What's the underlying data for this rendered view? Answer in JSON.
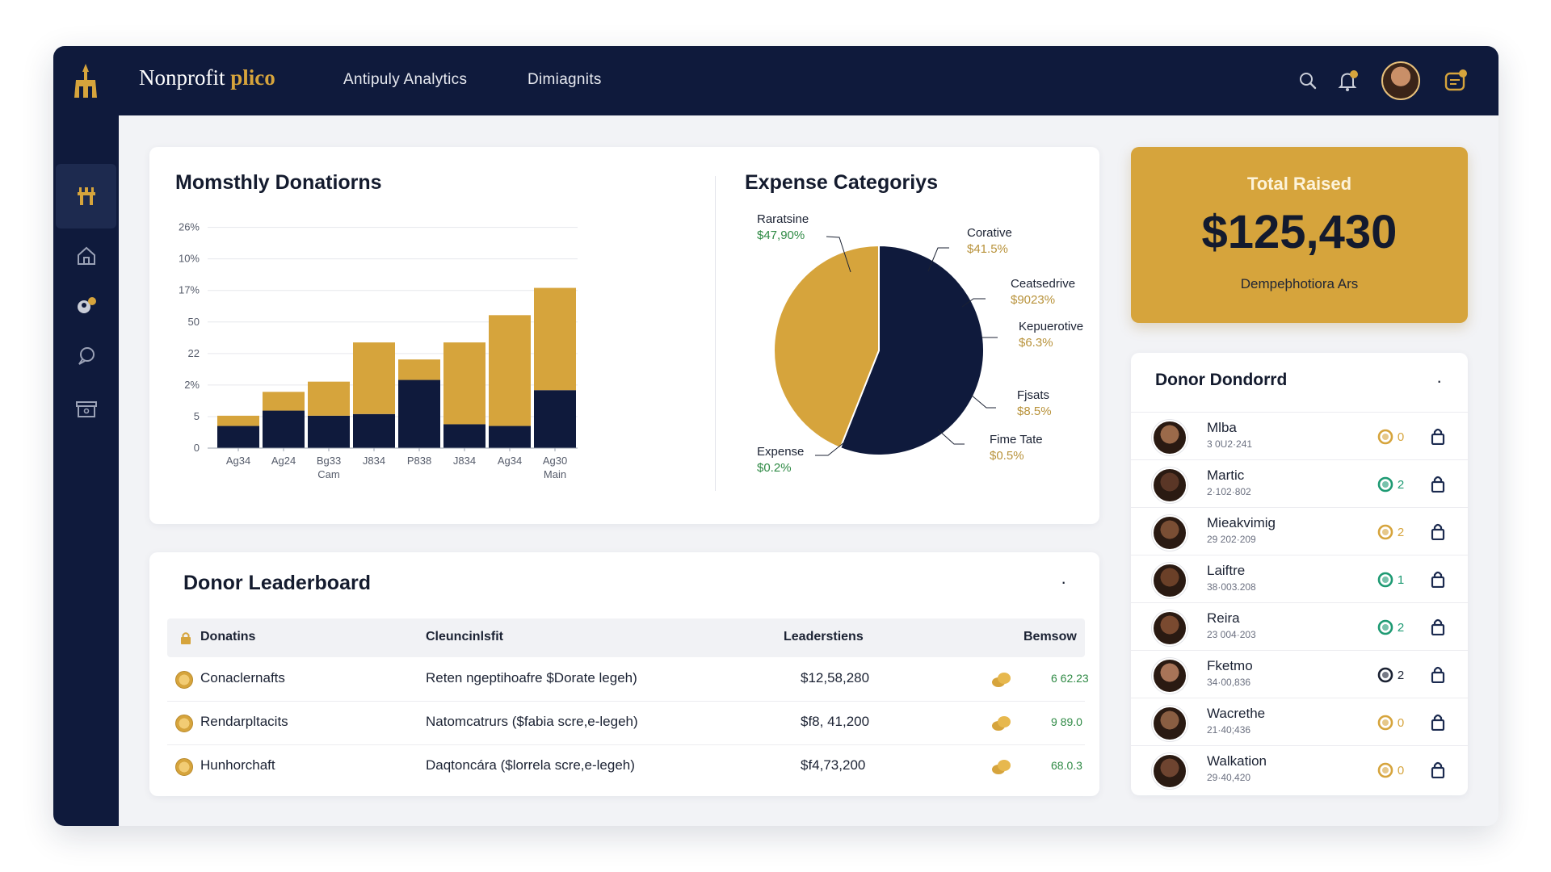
{
  "colors": {
    "navy": "#0f1a3c",
    "gold": "#d6a43c",
    "green": "#2f8a45",
    "background": "#f2f3f6"
  },
  "brand": {
    "name": "Nonprofit ",
    "accent": "plico"
  },
  "nav": [
    "Antipuly Analytics",
    "Dimiagnits"
  ],
  "topbar_icons": [
    "search-icon",
    "bell-icon",
    "avatar",
    "calendar-icon"
  ],
  "sidebar_icons": [
    "dashboard-icon",
    "home-icon",
    "donors-icon",
    "chat-icon",
    "archive-icon"
  ],
  "monthly": {
    "title": "Momsthly Donatiorns"
  },
  "expense": {
    "title": "Expense Categoriys",
    "labels": [
      {
        "name": "Raratsine",
        "value": "$47,90%"
      },
      {
        "name": "Corative",
        "value": "$41.5%"
      },
      {
        "name": "Ceatsedrive",
        "value": "$9023%"
      },
      {
        "name": "Kepuerotive",
        "value": "$6.3%"
      },
      {
        "name": "Fjsats",
        "value": "$8.5%"
      },
      {
        "name": "Fime Tate",
        "value": "$0.5%"
      },
      {
        "name": "Expense",
        "value": "$0.2%"
      }
    ]
  },
  "total": {
    "label": "Total Raised",
    "value": "$125,430",
    "sub": "Dempeþhotiora Ars"
  },
  "leaderboard": {
    "title": "Donor Leaderboard",
    "menu": "·",
    "headers": [
      "Donatins",
      "Cleuncinlsfit",
      "Leaderstiens",
      "Bemsow"
    ],
    "rows": [
      {
        "name": "Conaclernafts",
        "desc": "Reten ngeptihoafre $Dorate legeh)",
        "amount": "$12,58,280",
        "score": "6 62.23"
      },
      {
        "name": "Rendarpltacits",
        "desc": "Natomcatrurs ($fabia scre,e-legeh)",
        "amount": "$f8, 41,200",
        "score": "9 89.0"
      },
      {
        "name": "Hunhorchaft",
        "desc": "Daqtoncára ($lorrela scre,e-legeh)",
        "amount": "$f4,73,200",
        "score": "68.0.3"
      }
    ]
  },
  "donor_list": {
    "title": "Donor Dondorrd",
    "menu": "·",
    "rows": [
      {
        "name": "Mlba",
        "sub": "3 0U2·241",
        "badge": "0",
        "badge_color": "#d6a43c"
      },
      {
        "name": "Martic",
        "sub": "2·102·802",
        "badge": "2",
        "badge_color": "#1e9a73"
      },
      {
        "name": "Mieakvimig",
        "sub": "29 202·209",
        "badge": "2",
        "badge_color": "#d6a43c"
      },
      {
        "name": "Laiftre",
        "sub": "38·003.208",
        "badge": "1",
        "badge_color": "#1e9a73"
      },
      {
        "name": "Reira",
        "sub": "23 004·203",
        "badge": "2",
        "badge_color": "#1e9a73"
      },
      {
        "name": "Fketmo",
        "sub": "34·00,836",
        "badge": "2",
        "badge_color": "#1b2233"
      },
      {
        "name": "Wacrethe",
        "sub": "21·40;436",
        "badge": "0",
        "badge_color": "#d6a43c"
      },
      {
        "name": "Walkation",
        "sub": "29·40,420",
        "badge": "0",
        "badge_color": "#d6a43c"
      }
    ]
  },
  "chart_data": [
    {
      "type": "bar",
      "title": "Momsthly Donatiorns",
      "categories": [
        "Ag34",
        "Ag24",
        "Bg33",
        "J834",
        "P838",
        "J834",
        "Ag34",
        "Ag30"
      ],
      "category_sublabels": [
        "",
        "",
        "Cam",
        "",
        "",
        "",
        "",
        "Main"
      ],
      "y_tick_labels": [
        "0",
        "5",
        "2%",
        "22",
        "50",
        "17%",
        "10%",
        "26%"
      ],
      "series": [
        {
          "values": [
            1.3,
            2.2,
            1.9,
            2.0,
            4.0,
            1.4,
            1.3,
            3.4
          ],
          "color": "#0f1a3c"
        },
        {
          "values": [
            0.6,
            1.1,
            2.0,
            4.2,
            1.2,
            4.8,
            6.5,
            6.0
          ],
          "color": "#d6a43c"
        }
      ],
      "stacked": true,
      "ylim": [
        0,
        13.5
      ],
      "grid": true
    },
    {
      "type": "pie",
      "title": "Expense Categoriys",
      "values": [
        56,
        44
      ],
      "colors": [
        "#0f1a3c",
        "#d6a43c"
      ],
      "start_angle_deg": 0
    }
  ]
}
